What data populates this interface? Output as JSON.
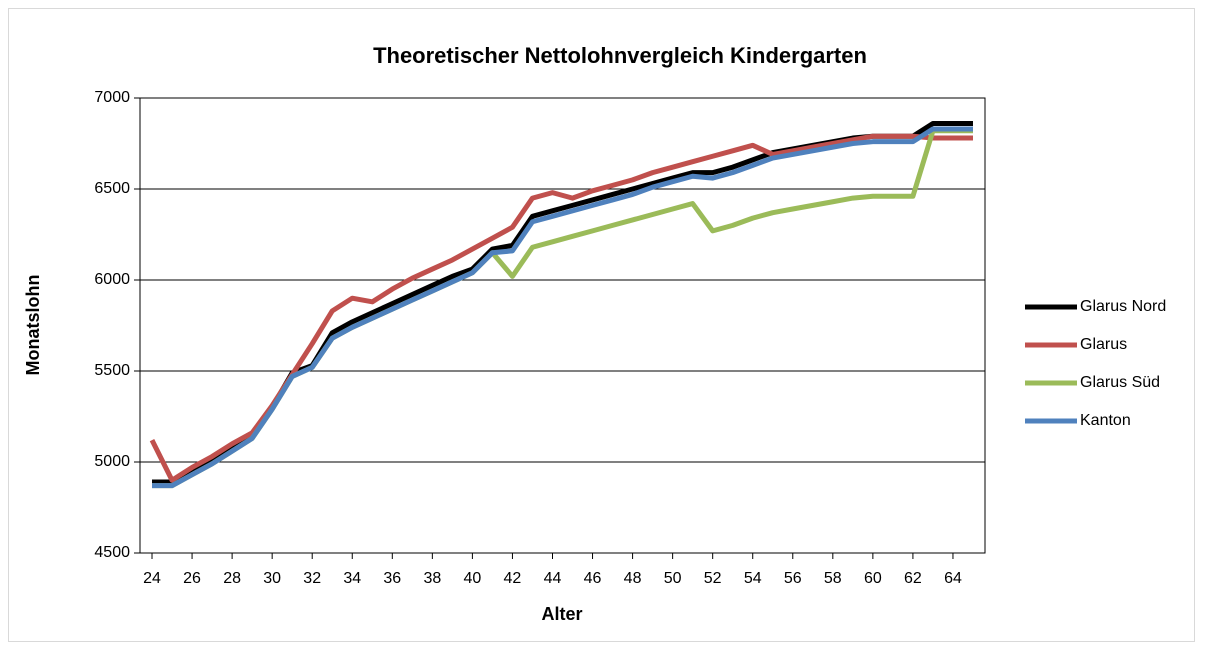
{
  "chart_data": {
    "type": "line",
    "title": "Theoretischer Nettolohnvergleich Kindergarten",
    "xlabel": "Alter",
    "ylabel": "Monatslohn",
    "x": [
      24,
      25,
      26,
      27,
      28,
      29,
      30,
      31,
      32,
      33,
      34,
      35,
      36,
      37,
      38,
      39,
      40,
      41,
      42,
      43,
      44,
      45,
      46,
      47,
      48,
      49,
      50,
      51,
      52,
      53,
      54,
      55,
      56,
      57,
      58,
      59,
      60,
      61,
      62,
      63,
      64,
      65
    ],
    "xlim": [
      23.4,
      65.6
    ],
    "xticks": [
      24,
      26,
      28,
      30,
      32,
      34,
      36,
      38,
      40,
      42,
      44,
      46,
      48,
      50,
      52,
      54,
      56,
      58,
      60,
      62,
      64
    ],
    "ylim": [
      4500,
      7000
    ],
    "yticks": [
      4500,
      5000,
      5500,
      6000,
      6500,
      7000
    ],
    "grid": true,
    "legend": "right",
    "series": [
      {
        "name": "Glarus Nord",
        "color": "#000000",
        "values": [
          4890,
          4890,
          4950,
          5010,
          5070,
          5140,
          5300,
          5490,
          5530,
          5710,
          5770,
          5820,
          5870,
          5920,
          5970,
          6020,
          6060,
          6170,
          6190,
          6350,
          6380,
          6410,
          6440,
          6470,
          6500,
          6530,
          6560,
          6590,
          6590,
          6620,
          6660,
          6700,
          6720,
          6740,
          6760,
          6780,
          6790,
          6790,
          6790,
          6860,
          6860,
          6860
        ]
      },
      {
        "name": "Glarus",
        "color": "#c0504d",
        "values": [
          5120,
          4900,
          4970,
          5030,
          5100,
          5160,
          5310,
          5480,
          5650,
          5830,
          5900,
          5880,
          5950,
          6010,
          6060,
          6110,
          6170,
          6230,
          6290,
          6450,
          6480,
          6450,
          6490,
          6520,
          6550,
          6590,
          6620,
          6650,
          6680,
          6710,
          6740,
          6690,
          6710,
          6730,
          6750,
          6770,
          6790,
          6790,
          6790,
          6780,
          6780,
          6780
        ]
      },
      {
        "name": "Glarus Süd",
        "color": "#9bbb59",
        "values": [
          4870,
          4870,
          4930,
          4990,
          5060,
          5130,
          5290,
          5470,
          5520,
          5680,
          5740,
          5790,
          5840,
          5890,
          5940,
          5990,
          6040,
          6150,
          6020,
          6180,
          6210,
          6240,
          6270,
          6300,
          6330,
          6360,
          6390,
          6420,
          6270,
          6300,
          6340,
          6370,
          6390,
          6410,
          6430,
          6450,
          6460,
          6460,
          6460,
          6820,
          6820,
          6820
        ]
      },
      {
        "name": "Kanton",
        "color": "#4f81bd",
        "values": [
          4870,
          4870,
          4930,
          4990,
          5060,
          5130,
          5290,
          5470,
          5520,
          5680,
          5740,
          5790,
          5840,
          5890,
          5940,
          5990,
          6040,
          6150,
          6160,
          6320,
          6350,
          6380,
          6410,
          6440,
          6470,
          6510,
          6540,
          6570,
          6560,
          6590,
          6630,
          6670,
          6690,
          6710,
          6730,
          6750,
          6760,
          6760,
          6760,
          6830,
          6830,
          6830
        ]
      }
    ]
  }
}
